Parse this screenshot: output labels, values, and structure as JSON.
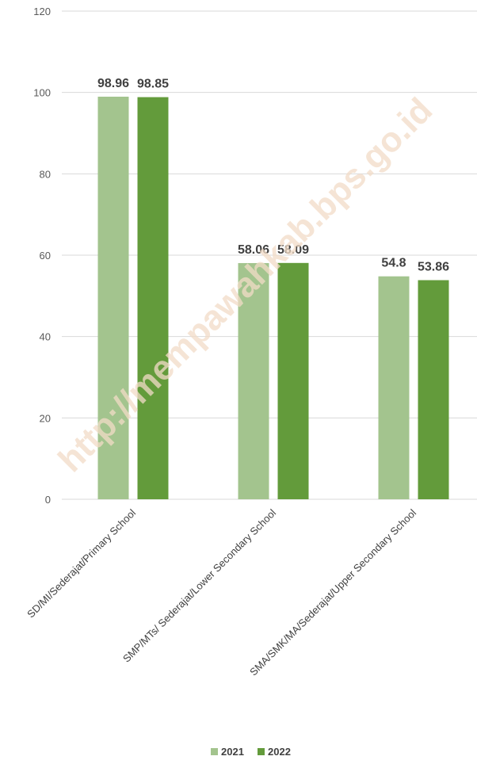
{
  "chart_data": {
    "type": "bar",
    "categories": [
      "SD/MI/Sederajat/Primary School",
      "SMP/MTs/ Sederajat/Lower Secondary School",
      "SMA/SMK/MA/Sederajat/Upper Secondary School"
    ],
    "series": [
      {
        "name": "2021",
        "values": [
          98.96,
          58.06,
          54.8
        ],
        "value_labels": [
          "98.96",
          "58.06",
          "54.8"
        ],
        "color": "#a3c48e"
      },
      {
        "name": "2022",
        "values": [
          98.85,
          58.09,
          53.86
        ],
        "value_labels": [
          "98.85",
          "58.09",
          "53.86"
        ],
        "color": "#639b3b"
      }
    ],
    "yticks": [
      "0",
      "20",
      "40",
      "60",
      "80",
      "100",
      "120"
    ],
    "ylim": [
      0,
      120
    ],
    "grid": true,
    "gridline_color": "#d9d9d9",
    "legend_position": "bottom",
    "watermark": "http://mempawahkab.bps.go.id"
  }
}
